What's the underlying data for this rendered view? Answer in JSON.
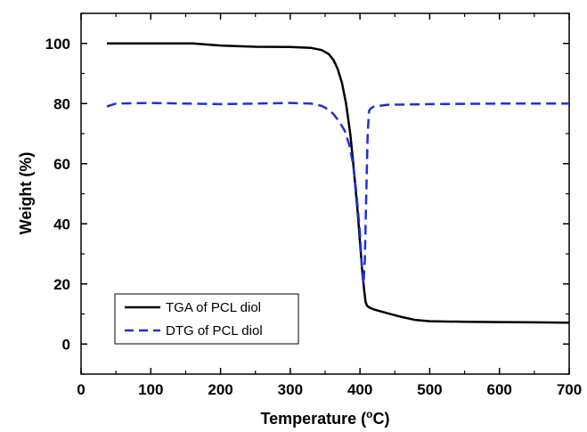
{
  "chart_data": {
    "type": "line",
    "xlabel": "Temperature (°C)",
    "xlabel_parts": {
      "before": "Temperature (",
      "sup": "o",
      "after": "C)"
    },
    "ylabel": "Weight (%)",
    "xlim": [
      0,
      700
    ],
    "ylim": [
      -10,
      110
    ],
    "xticks": [
      0,
      100,
      200,
      300,
      400,
      500,
      600,
      700
    ],
    "yticks": [
      0,
      20,
      40,
      60,
      80,
      100
    ],
    "grid": false,
    "legend_position": "bottom-left",
    "series": [
      {
        "name": "TGA of PCL diol",
        "color": "#000000",
        "style": "solid",
        "x": [
          37,
          100,
          160,
          200,
          250,
          300,
          330,
          345,
          355,
          362,
          368,
          374,
          380,
          386,
          390,
          394,
          397,
          400,
          403,
          406,
          408,
          410,
          413,
          420,
          440,
          460,
          480,
          500,
          550,
          600,
          650,
          700
        ],
        "y": [
          100,
          100,
          100,
          99.3,
          98.9,
          98.8,
          98.5,
          97.8,
          96.5,
          94.5,
          91.5,
          87,
          80,
          70,
          61,
          51,
          43,
          34,
          25,
          18,
          14,
          12.8,
          12.2,
          11.5,
          10.2,
          9,
          8,
          7.6,
          7.4,
          7.3,
          7.2,
          7.1
        ]
      },
      {
        "name": "DTG of PCL diol",
        "color": "#1f2fd6",
        "style": "dashed",
        "x": [
          37,
          50,
          100,
          150,
          200,
          250,
          300,
          330,
          345,
          355,
          362,
          370,
          378,
          385,
          390,
          395,
          400,
          403,
          405,
          407,
          409,
          411,
          413,
          416,
          420,
          440,
          500,
          600,
          700
        ],
        "y": [
          79,
          80,
          80.2,
          80,
          79.8,
          80,
          80.2,
          80,
          79.2,
          78,
          76.5,
          74,
          71,
          66,
          60,
          50,
          37,
          24,
          20,
          28,
          50,
          70,
          77.5,
          78.5,
          79,
          79.6,
          79.8,
          80,
          80
        ]
      }
    ]
  }
}
